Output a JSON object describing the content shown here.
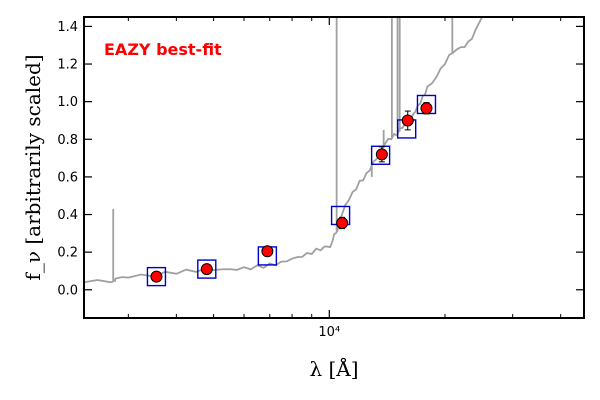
{
  "chart_data": {
    "type": "scatter",
    "annotation": "EAZY best-fit",
    "xlabel": "λ [Å]",
    "ylabel": "f_ν [arbitrarily scaled]",
    "x_scale": "log",
    "xlim": [
      2300,
      46000
    ],
    "ylim": [
      -0.15,
      1.45
    ],
    "x_tick_labels": [
      {
        "value": 10000,
        "label": "10⁴"
      }
    ],
    "y_ticks": [
      0.0,
      0.2,
      0.4,
      0.6,
      0.8,
      1.0,
      1.2,
      1.4
    ],
    "y_tick_labels": [
      "0.0",
      "0.2",
      "0.4",
      "0.6",
      "0.8",
      "1.0",
      "1.2",
      "1.4"
    ],
    "grid": false,
    "colors": {
      "observed_marker": "#ff0000",
      "model_box": "#0000cc",
      "template_line": "#a0a0a0",
      "annotation": "#ff0000"
    },
    "series": [
      {
        "kind": "observed_flux",
        "x": [
          3550,
          4800,
          6900,
          10800,
          13700,
          16000,
          17900
        ],
        "y": [
          0.07,
          0.11,
          0.205,
          0.355,
          0.72,
          0.9,
          0.965
        ],
        "yerr": [
          0.01,
          0.01,
          0.02,
          0.03,
          0.04,
          0.05,
          0.03
        ]
      },
      {
        "kind": "model_flux",
        "x": [
          3550,
          4800,
          6900,
          10700,
          13600,
          15900,
          17900
        ],
        "y": [
          0.07,
          0.11,
          0.18,
          0.395,
          0.715,
          0.855,
          0.985
        ]
      },
      {
        "kind": "template_sed",
        "x": [
          2300,
          2700,
          2760,
          2780,
          3000,
          3500,
          4000,
          4500,
          5000,
          5500,
          6000,
          6500,
          7000,
          7500,
          8000,
          8500,
          9000,
          9500,
          9900,
          10200,
          10400,
          10600,
          11000,
          11500,
          12000,
          12500,
          13000,
          13500,
          14000,
          14500,
          15000,
          15500,
          16000,
          16500,
          17000,
          17500,
          18000,
          19000,
          20000,
          21000,
          22000,
          23000,
          24000,
          25000,
          26000
        ],
        "y": [
          0.04,
          0.04,
          0.05,
          0.06,
          0.065,
          0.07,
          0.085,
          0.095,
          0.105,
          0.11,
          0.12,
          0.13,
          0.14,
          0.15,
          0.165,
          0.175,
          0.19,
          0.21,
          0.23,
          0.26,
          0.3,
          0.35,
          0.45,
          0.52,
          0.58,
          0.62,
          0.68,
          0.72,
          0.78,
          0.8,
          0.82,
          0.86,
          0.88,
          0.93,
          0.98,
          1.03,
          1.08,
          1.13,
          1.2,
          1.26,
          1.29,
          1.32,
          1.38,
          1.45,
          1.48
        ]
      },
      {
        "kind": "template_lines",
        "lines": [
          {
            "x": 2740,
            "y_top": 0.43
          },
          {
            "x": 10450,
            "y_top": 1.45
          },
          {
            "x": 12900,
            "y_top": 0.6
          },
          {
            "x": 13850,
            "y_top": 0.85
          },
          {
            "x": 14550,
            "y_top": 1.45
          },
          {
            "x": 15050,
            "y_top": 1.45
          },
          {
            "x": 15250,
            "y_top": 1.45
          },
          {
            "x": 20900,
            "y_top": 1.45
          }
        ]
      }
    ]
  }
}
